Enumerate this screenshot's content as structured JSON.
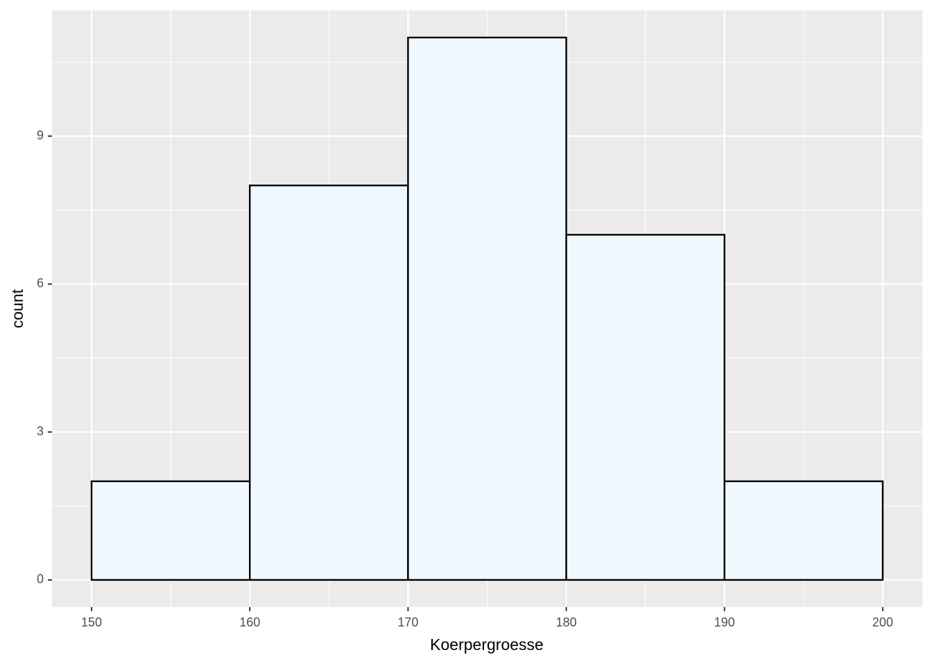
{
  "chart_data": {
    "type": "histogram",
    "x_label": "Koerpergroesse",
    "y_label": "count",
    "bins": [
      150,
      160,
      170,
      180,
      190,
      200
    ],
    "counts": [
      2,
      8,
      11,
      7,
      2
    ],
    "color": "#F0F8FF",
    "edge_color": "#000000",
    "xlim": [
      147.5,
      202.5
    ],
    "ylim": [
      -0.55,
      11.55
    ],
    "xticks": [
      150,
      160,
      170,
      180,
      190,
      200
    ],
    "yticks": [
      0,
      3,
      6,
      9
    ],
    "grid": true
  }
}
